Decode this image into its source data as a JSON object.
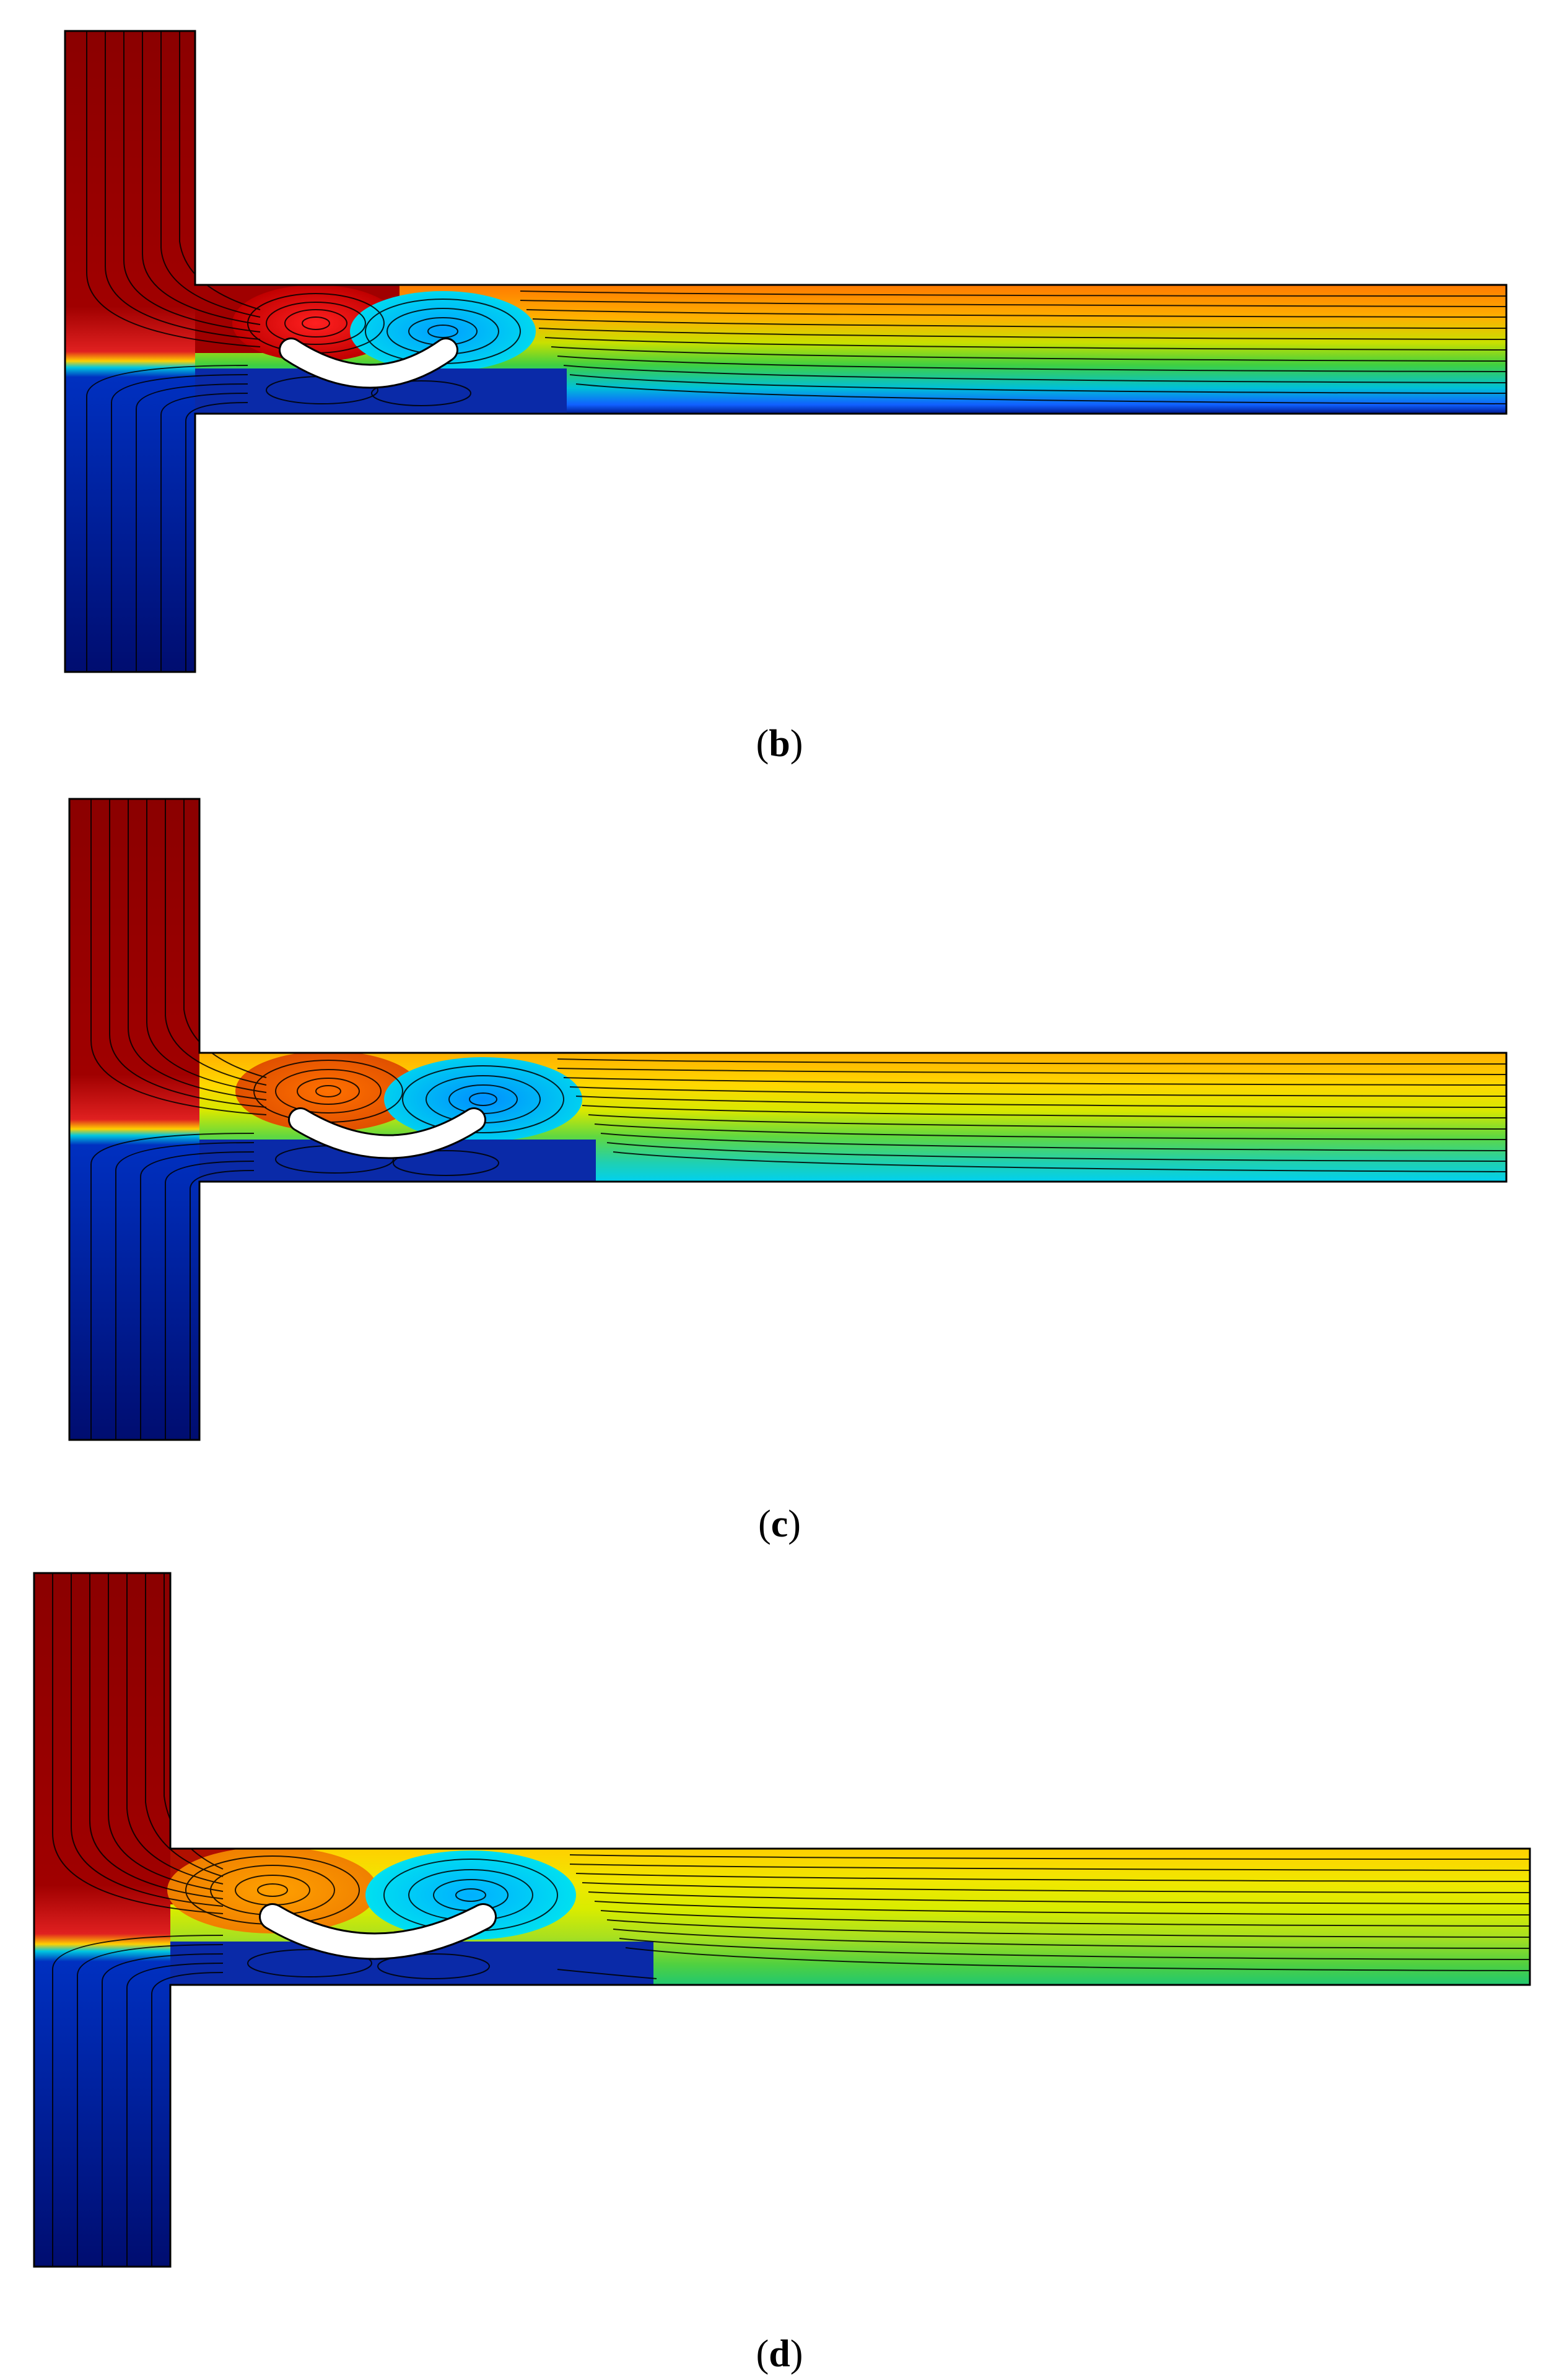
{
  "figure": {
    "panels": [
      {
        "id": "b",
        "caption_open": "(",
        "caption_letter": "b",
        "caption_close": ")"
      },
      {
        "id": "c",
        "caption_open": "(",
        "caption_letter": "c",
        "caption_close": ")"
      },
      {
        "id": "d",
        "caption_open": "(",
        "caption_letter": "d",
        "caption_close": ")"
      }
    ]
  },
  "colors": {
    "dark_red": "#8b0000",
    "red": "#e31a1c",
    "orange": "#ff8c00",
    "yellow": "#f5e400",
    "green": "#33cc33",
    "cyan": "#00c8e0",
    "blue": "#1e5cff",
    "dark_blue": "#00107a",
    "obstacle": "#ffffff",
    "outline": "#000000"
  }
}
